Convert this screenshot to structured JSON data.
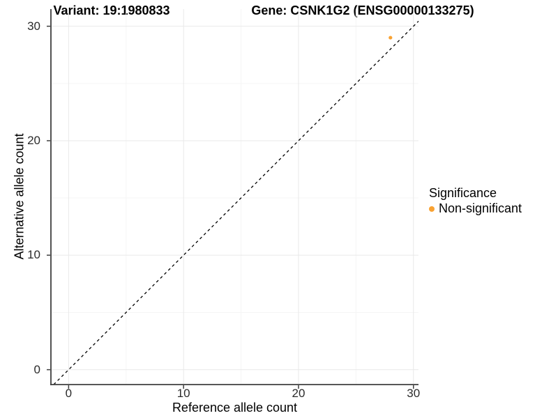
{
  "titles": {
    "variant": "Variant: 19:1980833",
    "gene": "Gene: CSNK1G2 (ENSG00000133275)"
  },
  "axes": {
    "x_label": "Reference allele count",
    "y_label": "Alternative allele count"
  },
  "legend": {
    "title": "Significance",
    "items": [
      {
        "label": "Non-significant",
        "color": "#F9A232",
        "marker": "circle-icon"
      }
    ]
  },
  "colors": {
    "point": "#F9A232",
    "axis": "#3f3f3f",
    "grid_major": "#e9e9e9",
    "grid_minor": "#f5f5f5",
    "identity_line": "#000000",
    "background": "#ffffff"
  },
  "chart_data": {
    "type": "scatter",
    "title": "Variant: 19:1980833   Gene: CSNK1G2 (ENSG00000133275)",
    "xlabel": "Reference allele count",
    "ylabel": "Alternative allele count",
    "series": [
      {
        "name": "Non-significant",
        "points": [
          {
            "x": 28,
            "y": 29
          }
        ]
      }
    ],
    "points": [
      {
        "x": 28,
        "y": 29,
        "series": "Non-significant"
      }
    ],
    "xlim": [
      -1.54,
      30.44
    ],
    "ylim": [
      -1.3,
      31.5
    ],
    "x_ticks": [
      0,
      10,
      20,
      30
    ],
    "y_ticks": [
      0,
      10,
      20,
      30
    ],
    "x_minor_ticks": [
      5,
      15,
      25
    ],
    "y_minor_ticks": [
      5,
      15,
      25
    ],
    "identity_line": true,
    "identity_line_style": "dashed",
    "grid": true,
    "legend_position": "right"
  }
}
